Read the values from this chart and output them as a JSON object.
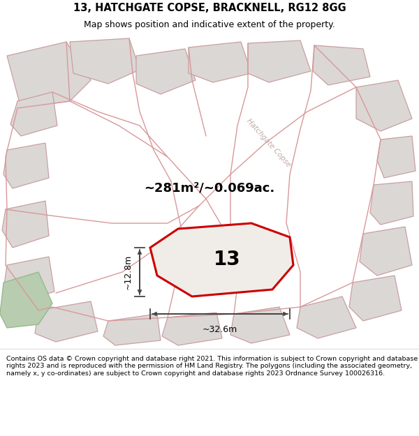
{
  "title_line1": "13, HATCHGATE COPSE, BRACKNELL, RG12 8GG",
  "title_line2": "Map shows position and indicative extent of the property.",
  "footer_text": "Contains OS data © Crown copyright and database right 2021. This information is subject to Crown copyright and database rights 2023 and is reproduced with the permission of HM Land Registry. The polygons (including the associated geometry, namely x, y co-ordinates) are subject to Crown copyright and database rights 2023 Ordnance Survey 100026316.",
  "area_text": "~281m²/~0.069ac.",
  "plot_number": "13",
  "dim1_text": "~12.8m",
  "dim2_text": "~32.6m",
  "map_bg": "#eeebe8",
  "plot_fill": "#f0ece9",
  "plot_edge_color": "#cc0000",
  "road_line_color": "#d9989a",
  "building_fill": "#dbd7d4",
  "building_edge": "#c8a0a2",
  "road_label_color": "#c0a8a8",
  "green_fill": "#b8ccb0",
  "title_fontsize": 10.5,
  "subtitle_fontsize": 9,
  "footer_fontsize": 6.8
}
